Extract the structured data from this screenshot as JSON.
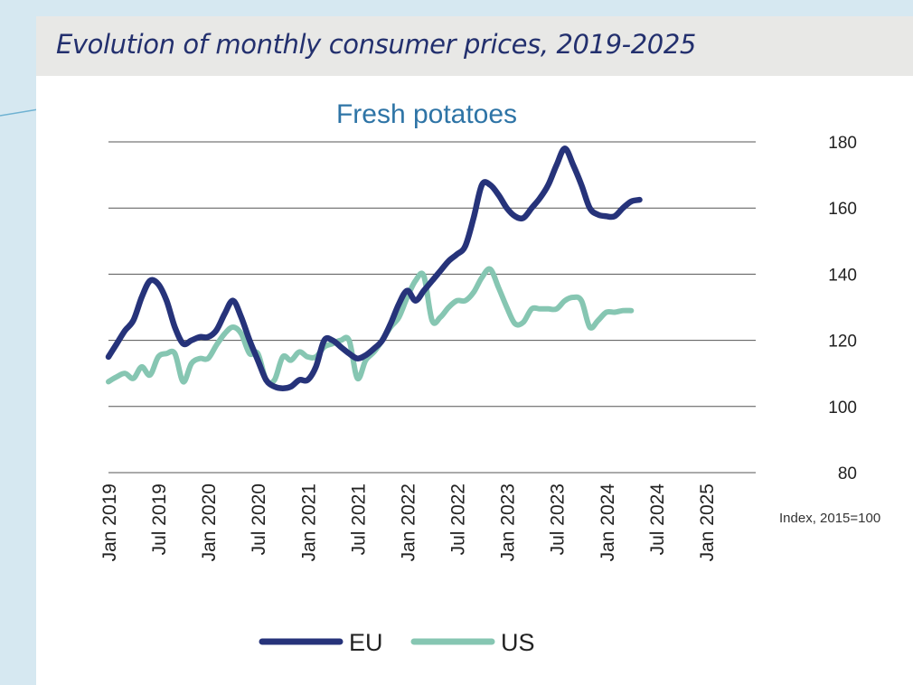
{
  "page": {
    "title": "Evolution of monthly consumer prices, 2019-2025"
  },
  "colors": {
    "eu": "#26337a",
    "us": "#86c6b2",
    "title": "#23306e",
    "subtitle": "#2e74a6",
    "grid": "#555555"
  },
  "chart_data": {
    "type": "line",
    "title": "Fresh potatoes",
    "unit_note": "Index, 2015=100",
    "xlabel": "",
    "ylabel": "",
    "y_axis_position": "right",
    "ylim": [
      80,
      180
    ],
    "yticks": [
      "80",
      "100",
      "120",
      "140",
      "160",
      "180"
    ],
    "x_range": [
      0,
      78
    ],
    "x_ticks": [
      {
        "label": "Jan 2019",
        "month": 0
      },
      {
        "label": "Jul 2019",
        "month": 6
      },
      {
        "label": "Jan 2020",
        "month": 12
      },
      {
        "label": "Jul 2020",
        "month": 18
      },
      {
        "label": "Jan 2021",
        "month": 24
      },
      {
        "label": "Jul 2021",
        "month": 30
      },
      {
        "label": "Jan 2022",
        "month": 36
      },
      {
        "label": "Jul 2022",
        "month": 42
      },
      {
        "label": "Jan 2023",
        "month": 48
      },
      {
        "label": "Jul 2023",
        "month": 54
      },
      {
        "label": "Jan 2024",
        "month": 60
      },
      {
        "label": "Jul 2024",
        "month": 66
      },
      {
        "label": "Jan 2025",
        "month": 72
      }
    ],
    "legend_position": "bottom-center",
    "series": [
      {
        "name": "EU",
        "points": [
          [
            0,
            115
          ],
          [
            1,
            119
          ],
          [
            2,
            123
          ],
          [
            3,
            126
          ],
          [
            4,
            133
          ],
          [
            5,
            138
          ],
          [
            6,
            137
          ],
          [
            7,
            132
          ],
          [
            8,
            124
          ],
          [
            9,
            119
          ],
          [
            10,
            120
          ],
          [
            11,
            121
          ],
          [
            12,
            121
          ],
          [
            13,
            123
          ],
          [
            14,
            128
          ],
          [
            15,
            132
          ],
          [
            16,
            127
          ],
          [
            17,
            120
          ],
          [
            18,
            114
          ],
          [
            19,
            108
          ],
          [
            20,
            106
          ],
          [
            21,
            105.5
          ],
          [
            22,
            106
          ],
          [
            23,
            108
          ],
          [
            24,
            108
          ],
          [
            25,
            112
          ],
          [
            26,
            120
          ],
          [
            27,
            120
          ],
          [
            28,
            118
          ],
          [
            29,
            116
          ],
          [
            30,
            114.5
          ],
          [
            31,
            115.5
          ],
          [
            32,
            117.5
          ],
          [
            33,
            120
          ],
          [
            34,
            125
          ],
          [
            35,
            131
          ],
          [
            36,
            135
          ],
          [
            37,
            132
          ],
          [
            38,
            135
          ],
          [
            39,
            138
          ],
          [
            40,
            141
          ],
          [
            41,
            144
          ],
          [
            42,
            146
          ],
          [
            43,
            148.5
          ],
          [
            44,
            157
          ],
          [
            45,
            167
          ],
          [
            46,
            167
          ],
          [
            47,
            164
          ],
          [
            48,
            160
          ],
          [
            49,
            157.5
          ],
          [
            50,
            157
          ],
          [
            51,
            160
          ],
          [
            52,
            163
          ],
          [
            53,
            167
          ],
          [
            54,
            173
          ],
          [
            55,
            178
          ],
          [
            56,
            173
          ],
          [
            57,
            167
          ],
          [
            58,
            160
          ],
          [
            59,
            158
          ],
          [
            60,
            157.5
          ],
          [
            61,
            157.5
          ],
          [
            62,
            160
          ],
          [
            63,
            162
          ],
          [
            64,
            162.5
          ]
        ]
      },
      {
        "name": "US",
        "points": [
          [
            0,
            107.5
          ],
          [
            1,
            109
          ],
          [
            2,
            110
          ],
          [
            3,
            108.5
          ],
          [
            4,
            112
          ],
          [
            5,
            109.5
          ],
          [
            6,
            115
          ],
          [
            7,
            116
          ],
          [
            8,
            116
          ],
          [
            9,
            107.5
          ],
          [
            10,
            113
          ],
          [
            11,
            114.5
          ],
          [
            12,
            114.5
          ],
          [
            13,
            118.5
          ],
          [
            14,
            122
          ],
          [
            15,
            124
          ],
          [
            16,
            122
          ],
          [
            17,
            116
          ],
          [
            18,
            116
          ],
          [
            19,
            108
          ],
          [
            20,
            108
          ],
          [
            21,
            115
          ],
          [
            22,
            114
          ],
          [
            23,
            116.5
          ],
          [
            24,
            115
          ],
          [
            25,
            115
          ],
          [
            26,
            118
          ],
          [
            27,
            119
          ],
          [
            28,
            120
          ],
          [
            29,
            120
          ],
          [
            30,
            108.5
          ],
          [
            31,
            114
          ],
          [
            32,
            116.5
          ],
          [
            33,
            120
          ],
          [
            34,
            124
          ],
          [
            35,
            127
          ],
          [
            36,
            133
          ],
          [
            37,
            138
          ],
          [
            38,
            139.5
          ],
          [
            39,
            126
          ],
          [
            40,
            127
          ],
          [
            41,
            130
          ],
          [
            42,
            132
          ],
          [
            43,
            132
          ],
          [
            44,
            134.5
          ],
          [
            45,
            139
          ],
          [
            46,
            141.5
          ],
          [
            47,
            136
          ],
          [
            48,
            130
          ],
          [
            49,
            125
          ],
          [
            50,
            125.5
          ],
          [
            51,
            129.5
          ],
          [
            52,
            129.5
          ],
          [
            53,
            129.5
          ],
          [
            54,
            129.5
          ],
          [
            55,
            132
          ],
          [
            56,
            133
          ],
          [
            57,
            132
          ],
          [
            58,
            124
          ],
          [
            59,
            126
          ],
          [
            60,
            128.5
          ],
          [
            61,
            128.5
          ],
          [
            62,
            129
          ],
          [
            63,
            129
          ]
        ]
      }
    ]
  }
}
